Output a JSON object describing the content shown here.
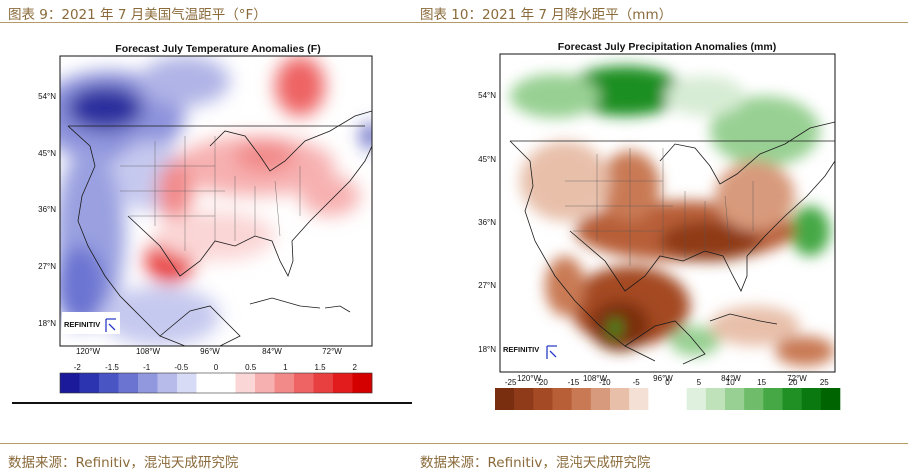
{
  "left": {
    "caption": "图表 9：2021 年 7 月美国气温距平（°F）",
    "source": "数据来源：Refinitiv，混沌天成研究院",
    "chart_data": {
      "type": "heatmap",
      "title": "Forecast July Temperature Anomalies (F)",
      "lat_ticks": [
        "54°N",
        "45°N",
        "36°N",
        "27°N",
        "18°N"
      ],
      "lon_ticks": [
        "120°W",
        "108°W",
        "96°W",
        "84°W",
        "72°W"
      ],
      "colorbar_ticks": [
        -2,
        -1.5,
        -1,
        -0.5,
        0,
        0.5,
        1,
        1.5,
        2
      ],
      "colorbar_colors": [
        "#1a1a9a",
        "#2d34b0",
        "#4a55c4",
        "#6c74d2",
        "#9198de",
        "#b6bbea",
        "#d8dbf5",
        "#ffffff",
        "#ffffff",
        "#fbd6d6",
        "#f7b0b0",
        "#f28a8a",
        "#ee6464",
        "#e84040",
        "#e21c1c",
        "#d40000"
      ]
    }
  },
  "right": {
    "caption": "图表 10：2021 年 7 月降水距平（mm）",
    "source": "数据来源：Refinitiv，混沌天成研究院",
    "chart_data": {
      "type": "heatmap",
      "title": "Forecast July Precipitation Anomalies (mm)",
      "lat_ticks": [
        "54°N",
        "45°N",
        "36°N",
        "27°N",
        "18°N"
      ],
      "lon_ticks": [
        "120°W",
        "108°W",
        "96°W",
        "84°W",
        "72°W"
      ],
      "colorbar_ticks": [
        -25,
        -20,
        -15,
        -10,
        -5,
        0,
        5,
        10,
        15,
        20,
        25
      ],
      "colorbar_colors": [
        "#7a2e10",
        "#8f3a18",
        "#a44a24",
        "#b85f38",
        "#c97a55",
        "#d89a7c",
        "#e8c0aa",
        "#f4e0d4",
        "#ffffff",
        "#ffffff",
        "#e0f0de",
        "#bfe2bb",
        "#98d093",
        "#6fbd6a",
        "#45a844",
        "#208f24",
        "#0a7a10",
        "#006400"
      ]
    }
  },
  "logo": "REFINITIV"
}
